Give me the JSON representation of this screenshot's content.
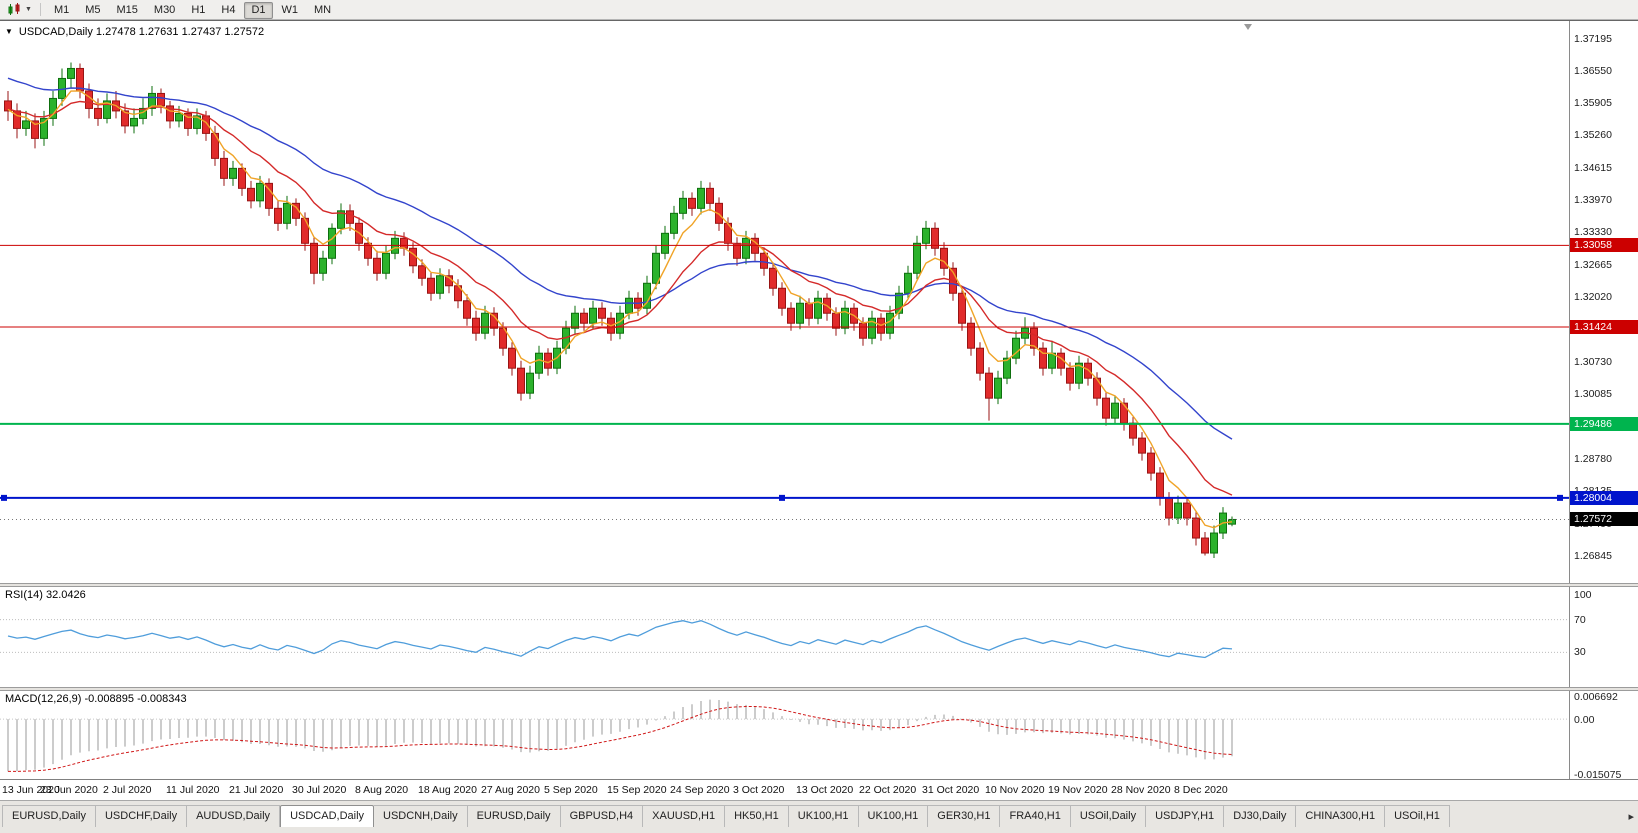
{
  "toolbar": {
    "timeframes": [
      "M1",
      "M5",
      "M15",
      "M30",
      "H1",
      "H4",
      "D1",
      "W1",
      "MN"
    ],
    "active_timeframe": "D1",
    "chart_type_icon": "chart-type-icon"
  },
  "chart": {
    "info_line": "USDCAD,Daily 1.27478 1.27631 1.27437 1.27572",
    "open": "1.27478",
    "high": "1.27631",
    "low": "1.27437",
    "close": "1.27572"
  },
  "chart_data": {
    "type": "candlestick",
    "symbol": "USDCAD",
    "timeframe": "Daily",
    "price_axis": {
      "min": 1.263,
      "max": 1.3755,
      "ticks": [
        "1.37195",
        "1.36550",
        "1.35905",
        "1.35260",
        "1.34615",
        "1.33970",
        "1.33330",
        "1.32665",
        "1.32020",
        "1.31375",
        "1.30730",
        "1.30085",
        "1.29440",
        "1.28780",
        "1.28135",
        "1.27490",
        "1.26845"
      ]
    },
    "hlines": [
      {
        "price": 1.33058,
        "label": "1.33058",
        "color": "#cc0000",
        "width": 1,
        "selected": false
      },
      {
        "price": 1.31424,
        "label": "1.31424",
        "color": "#cc0000",
        "width": 1,
        "selected": false
      },
      {
        "price": 1.29486,
        "label": "1.29486",
        "color": "#00b44e",
        "width": 2,
        "selected": false
      },
      {
        "price": 1.28004,
        "label": "1.28004",
        "color": "#0014cc",
        "width": 2,
        "selected": true
      }
    ],
    "current_price": {
      "price": 1.27572,
      "label": "1.27572",
      "color": "#000000"
    },
    "date_labels": [
      {
        "bar": 0,
        "label": "13 Jun 2020"
      },
      {
        "bar": 7,
        "label": "23 Jun 2020"
      },
      {
        "bar": 14,
        "label": "2 Jul 2020"
      },
      {
        "bar": 21,
        "label": "11 Jul 2020"
      },
      {
        "bar": 28,
        "label": "21 Jul 2020"
      },
      {
        "bar": 35,
        "label": "30 Jul 2020"
      },
      {
        "bar": 42,
        "label": "8 Aug 2020"
      },
      {
        "bar": 49,
        "label": "18 Aug 2020"
      },
      {
        "bar": 56,
        "label": "27 Aug 2020"
      },
      {
        "bar": 63,
        "label": "5 Sep 2020"
      },
      {
        "bar": 70,
        "label": "15 Sep 2020"
      },
      {
        "bar": 77,
        "label": "24 Sep 2020"
      },
      {
        "bar": 84,
        "label": "3 Oct 2020"
      },
      {
        "bar": 91,
        "label": "13 Oct 2020"
      },
      {
        "bar": 98,
        "label": "22 Oct 2020"
      },
      {
        "bar": 105,
        "label": "31 Oct 2020"
      },
      {
        "bar": 112,
        "label": "10 Nov 2020"
      },
      {
        "bar": 119,
        "label": "19 Nov 2020"
      },
      {
        "bar": 126,
        "label": "28 Nov 2020"
      },
      {
        "bar": 133,
        "label": "8 Dec 2020"
      }
    ],
    "candles": [
      [
        1.3595,
        1.3615,
        1.3555,
        1.3575
      ],
      [
        1.3575,
        1.359,
        1.352,
        1.354
      ],
      [
        1.354,
        1.3575,
        1.3525,
        1.3555
      ],
      [
        1.3555,
        1.357,
        1.35,
        1.352
      ],
      [
        1.352,
        1.3575,
        1.3505,
        1.356
      ],
      [
        1.356,
        1.3615,
        1.3545,
        1.36
      ],
      [
        1.36,
        1.366,
        1.3585,
        1.364
      ],
      [
        1.364,
        1.3672,
        1.362,
        1.366
      ],
      [
        1.366,
        1.367,
        1.36,
        1.3615
      ],
      [
        1.3615,
        1.363,
        1.356,
        1.358
      ],
      [
        1.358,
        1.36,
        1.3545,
        1.356
      ],
      [
        1.356,
        1.361,
        1.355,
        1.3595
      ],
      [
        1.3595,
        1.3615,
        1.356,
        1.3575
      ],
      [
        1.3575,
        1.359,
        1.353,
        1.3545
      ],
      [
        1.3545,
        1.358,
        1.353,
        1.356
      ],
      [
        1.356,
        1.36,
        1.3548,
        1.358
      ],
      [
        1.358,
        1.3625,
        1.3565,
        1.361
      ],
      [
        1.361,
        1.362,
        1.357,
        1.3585
      ],
      [
        1.3585,
        1.3595,
        1.354,
        1.3555
      ],
      [
        1.3555,
        1.3585,
        1.3542,
        1.357
      ],
      [
        1.357,
        1.358,
        1.3525,
        1.354
      ],
      [
        1.354,
        1.358,
        1.3528,
        1.3565
      ],
      [
        1.3565,
        1.3575,
        1.3515,
        1.353
      ],
      [
        1.353,
        1.3545,
        1.3465,
        1.348
      ],
      [
        1.348,
        1.3495,
        1.3425,
        1.344
      ],
      [
        1.344,
        1.3475,
        1.3425,
        1.346
      ],
      [
        1.346,
        1.347,
        1.3405,
        1.342
      ],
      [
        1.342,
        1.3435,
        1.338,
        1.3395
      ],
      [
        1.3395,
        1.3445,
        1.3382,
        1.343
      ],
      [
        1.343,
        1.344,
        1.3365,
        1.338
      ],
      [
        1.338,
        1.3395,
        1.3335,
        1.335
      ],
      [
        1.335,
        1.3405,
        1.3338,
        1.339
      ],
      [
        1.339,
        1.34,
        1.3345,
        1.336
      ],
      [
        1.336,
        1.3372,
        1.3295,
        1.331
      ],
      [
        1.331,
        1.3322,
        1.3228,
        1.325
      ],
      [
        1.325,
        1.3295,
        1.3235,
        1.328
      ],
      [
        1.328,
        1.335,
        1.3268,
        1.334
      ],
      [
        1.334,
        1.339,
        1.3328,
        1.3375
      ],
      [
        1.3375,
        1.3388,
        1.3335,
        1.335
      ],
      [
        1.335,
        1.3362,
        1.3295,
        1.331
      ],
      [
        1.331,
        1.3322,
        1.3265,
        1.328
      ],
      [
        1.328,
        1.3295,
        1.3235,
        1.325
      ],
      [
        1.325,
        1.3305,
        1.3238,
        1.329
      ],
      [
        1.329,
        1.3335,
        1.3278,
        1.332
      ],
      [
        1.332,
        1.3332,
        1.3285,
        1.33
      ],
      [
        1.33,
        1.3312,
        1.325,
        1.3265
      ],
      [
        1.3265,
        1.3278,
        1.3225,
        1.324
      ],
      [
        1.324,
        1.3252,
        1.3195,
        1.321
      ],
      [
        1.321,
        1.326,
        1.3198,
        1.3245
      ],
      [
        1.3245,
        1.3258,
        1.321,
        1.3225
      ],
      [
        1.3225,
        1.3238,
        1.318,
        1.3195
      ],
      [
        1.3195,
        1.3208,
        1.3145,
        1.316
      ],
      [
        1.316,
        1.3175,
        1.3115,
        1.313
      ],
      [
        1.313,
        1.3185,
        1.3118,
        1.317
      ],
      [
        1.317,
        1.3182,
        1.3125,
        1.314
      ],
      [
        1.314,
        1.3152,
        1.3085,
        1.31
      ],
      [
        1.31,
        1.3112,
        1.3045,
        1.306
      ],
      [
        1.306,
        1.3075,
        1.2995,
        1.301
      ],
      [
        1.301,
        1.3065,
        1.2998,
        1.305
      ],
      [
        1.305,
        1.3105,
        1.3038,
        1.309
      ],
      [
        1.309,
        1.31,
        1.3045,
        1.306
      ],
      [
        1.306,
        1.3115,
        1.3048,
        1.31
      ],
      [
        1.31,
        1.3155,
        1.3088,
        1.314
      ],
      [
        1.314,
        1.3185,
        1.3128,
        1.317
      ],
      [
        1.317,
        1.318,
        1.3135,
        1.315
      ],
      [
        1.315,
        1.3195,
        1.3138,
        1.318
      ],
      [
        1.318,
        1.3192,
        1.3145,
        1.316
      ],
      [
        1.316,
        1.3172,
        1.3115,
        1.313
      ],
      [
        1.313,
        1.3185,
        1.3118,
        1.317
      ],
      [
        1.317,
        1.3215,
        1.3158,
        1.32
      ],
      [
        1.32,
        1.3212,
        1.3165,
        1.318
      ],
      [
        1.318,
        1.3245,
        1.3168,
        1.323
      ],
      [
        1.323,
        1.3305,
        1.3218,
        1.329
      ],
      [
        1.329,
        1.3345,
        1.3278,
        1.333
      ],
      [
        1.333,
        1.3385,
        1.3318,
        1.337
      ],
      [
        1.337,
        1.3415,
        1.3358,
        1.34
      ],
      [
        1.34,
        1.3412,
        1.3365,
        1.338
      ],
      [
        1.338,
        1.3435,
        1.3368,
        1.342
      ],
      [
        1.342,
        1.3432,
        1.3375,
        1.339
      ],
      [
        1.339,
        1.3402,
        1.3335,
        1.335
      ],
      [
        1.335,
        1.3362,
        1.3295,
        1.331
      ],
      [
        1.331,
        1.3322,
        1.3265,
        1.328
      ],
      [
        1.328,
        1.3335,
        1.3268,
        1.332
      ],
      [
        1.332,
        1.333,
        1.3275,
        1.329
      ],
      [
        1.329,
        1.3302,
        1.3245,
        1.326
      ],
      [
        1.326,
        1.3272,
        1.3205,
        1.322
      ],
      [
        1.322,
        1.3232,
        1.3165,
        1.318
      ],
      [
        1.318,
        1.3192,
        1.3135,
        1.315
      ],
      [
        1.315,
        1.3205,
        1.3138,
        1.319
      ],
      [
        1.319,
        1.32,
        1.3145,
        1.316
      ],
      [
        1.316,
        1.3215,
        1.3148,
        1.32
      ],
      [
        1.32,
        1.321,
        1.3155,
        1.317
      ],
      [
        1.317,
        1.3182,
        1.3125,
        1.314
      ],
      [
        1.314,
        1.3195,
        1.3128,
        1.318
      ],
      [
        1.318,
        1.319,
        1.3135,
        1.315
      ],
      [
        1.315,
        1.3162,
        1.3105,
        1.312
      ],
      [
        1.312,
        1.3175,
        1.3108,
        1.316
      ],
      [
        1.316,
        1.317,
        1.3115,
        1.313
      ],
      [
        1.313,
        1.3185,
        1.3118,
        1.317
      ],
      [
        1.317,
        1.3225,
        1.3158,
        1.321
      ],
      [
        1.321,
        1.3265,
        1.3198,
        1.325
      ],
      [
        1.325,
        1.3325,
        1.3238,
        1.331
      ],
      [
        1.331,
        1.3355,
        1.3298,
        1.334
      ],
      [
        1.334,
        1.3352,
        1.3285,
        1.33
      ],
      [
        1.33,
        1.3312,
        1.3245,
        1.326
      ],
      [
        1.326,
        1.3272,
        1.3195,
        1.321
      ],
      [
        1.321,
        1.3222,
        1.3135,
        1.315
      ],
      [
        1.315,
        1.3162,
        1.3085,
        1.31
      ],
      [
        1.31,
        1.3112,
        1.3035,
        1.305
      ],
      [
        1.305,
        1.3062,
        1.2955,
        1.3
      ],
      [
        1.3,
        1.3055,
        1.2988,
        1.304
      ],
      [
        1.304,
        1.3095,
        1.3028,
        1.308
      ],
      [
        1.308,
        1.3135,
        1.3068,
        1.312
      ],
      [
        1.312,
        1.3162,
        1.3108,
        1.314
      ],
      [
        1.314,
        1.3152,
        1.3085,
        1.31
      ],
      [
        1.31,
        1.3112,
        1.3045,
        1.306
      ],
      [
        1.306,
        1.3115,
        1.3048,
        1.309
      ],
      [
        1.309,
        1.31,
        1.3045,
        1.306
      ],
      [
        1.306,
        1.3072,
        1.3015,
        1.303
      ],
      [
        1.303,
        1.3085,
        1.3018,
        1.307
      ],
      [
        1.307,
        1.308,
        1.3025,
        1.304
      ],
      [
        1.304,
        1.3052,
        1.2985,
        1.3
      ],
      [
        1.3,
        1.3012,
        1.2945,
        1.296
      ],
      [
        1.296,
        1.3005,
        1.2948,
        1.299
      ],
      [
        1.299,
        1.3,
        1.2935,
        1.295
      ],
      [
        1.295,
        1.2962,
        1.2905,
        1.292
      ],
      [
        1.292,
        1.2932,
        1.2875,
        1.289
      ],
      [
        1.289,
        1.2902,
        1.2835,
        1.285
      ],
      [
        1.285,
        1.2862,
        1.2785,
        1.28
      ],
      [
        1.28,
        1.2812,
        1.2745,
        1.276
      ],
      [
        1.276,
        1.2805,
        1.2748,
        1.279
      ],
      [
        1.279,
        1.28,
        1.2745,
        1.276
      ],
      [
        1.276,
        1.2772,
        1.2705,
        1.272
      ],
      [
        1.272,
        1.2732,
        1.2685,
        1.269
      ],
      [
        1.269,
        1.2745,
        1.268,
        1.273
      ],
      [
        1.273,
        1.2782,
        1.2718,
        1.277
      ],
      [
        1.27478,
        1.27631,
        1.27437,
        1.27572
      ]
    ],
    "colors": {
      "up_fill": "#2cb22c",
      "up_stroke": "#0e6f0e",
      "down_fill": "#e12b2b",
      "down_stroke": "#981414",
      "ma_fast": "#f0a428",
      "ma_mid": "#d42a2a",
      "ma_slow": "#3344cc"
    }
  },
  "rsi": {
    "label": "RSI(14) 32.0426",
    "current": 32.0426,
    "levels": [
      "100",
      "70",
      "30"
    ],
    "color": "#4f9ddb"
  },
  "macd": {
    "label": "MACD(12,26,9) -0.008895 -0.008343",
    "current_macd": -0.008895,
    "current_signal": -0.008343,
    "axis": [
      "0.006692",
      "0.00",
      "-0.015075"
    ]
  },
  "tabs": {
    "items": [
      "EURUSD,Daily",
      "USDCHF,Daily",
      "AUDUSD,Daily",
      "USDCAD,Daily",
      "USDCNH,Daily",
      "EURUSD,Daily",
      "GBPUSD,H4",
      "XAUUSD,H1",
      "HK50,H1",
      "UK100,H1",
      "UK100,H1",
      "GER30,H1",
      "FRA40,H1",
      "USOil,Daily",
      "USDJPY,H1",
      "DJ30,Daily",
      "CHINA300,H1",
      "USOil,H1"
    ],
    "active_index": 3,
    "scroll_right": "▸"
  }
}
